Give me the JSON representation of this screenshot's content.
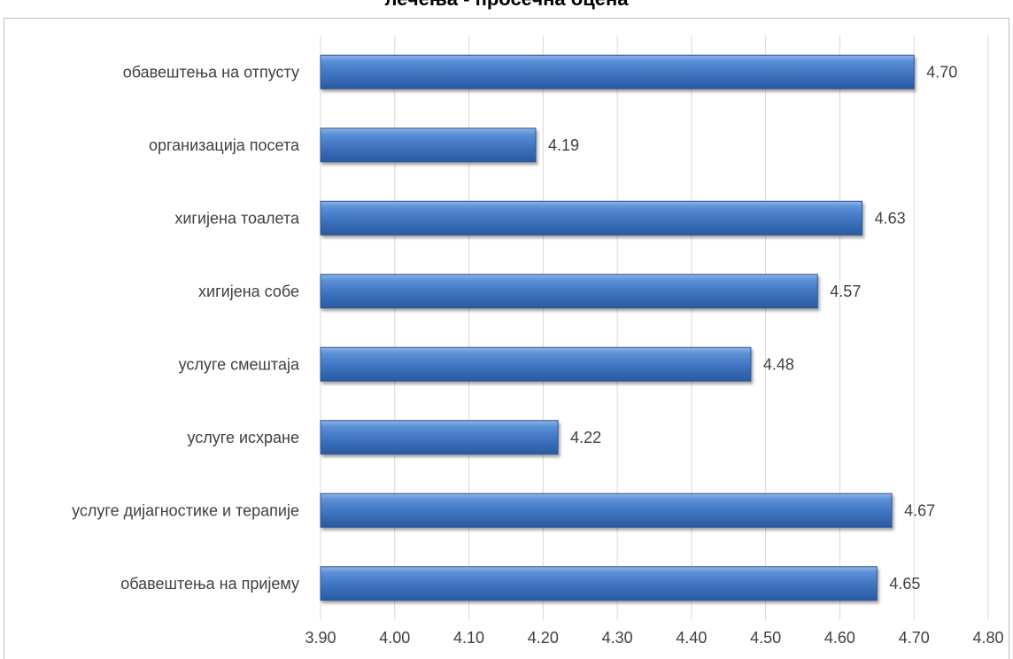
{
  "chart_data": {
    "type": "bar",
    "orientation": "horizontal",
    "title": "лечења - просечна оцена",
    "categories": [
      "обавештења на отпусту",
      "организација посета",
      "хигијена тоалета",
      "хигијена собе",
      "услуге смештаја",
      "услуге исхране",
      "услуге дијагностике и терапије",
      "обавештења на пријему"
    ],
    "values": [
      4.7,
      4.19,
      4.63,
      4.57,
      4.48,
      4.22,
      4.67,
      4.65
    ],
    "value_labels": [
      "4.70",
      "4.19",
      "4.63",
      "4.57",
      "4.48",
      "4.22",
      "4.67",
      "4.65"
    ],
    "xlim": [
      3.9,
      4.8
    ],
    "x_ticks": [
      "3.90",
      "4.00",
      "4.10",
      "4.20",
      "4.30",
      "4.40",
      "4.50",
      "4.60",
      "4.70",
      "4.80"
    ],
    "grid": true,
    "bar_color": "#4a7ec4",
    "bar_color_dark": "#2a5aa0",
    "grid_color": "#d9d9d9",
    "text_color": "#404040"
  }
}
